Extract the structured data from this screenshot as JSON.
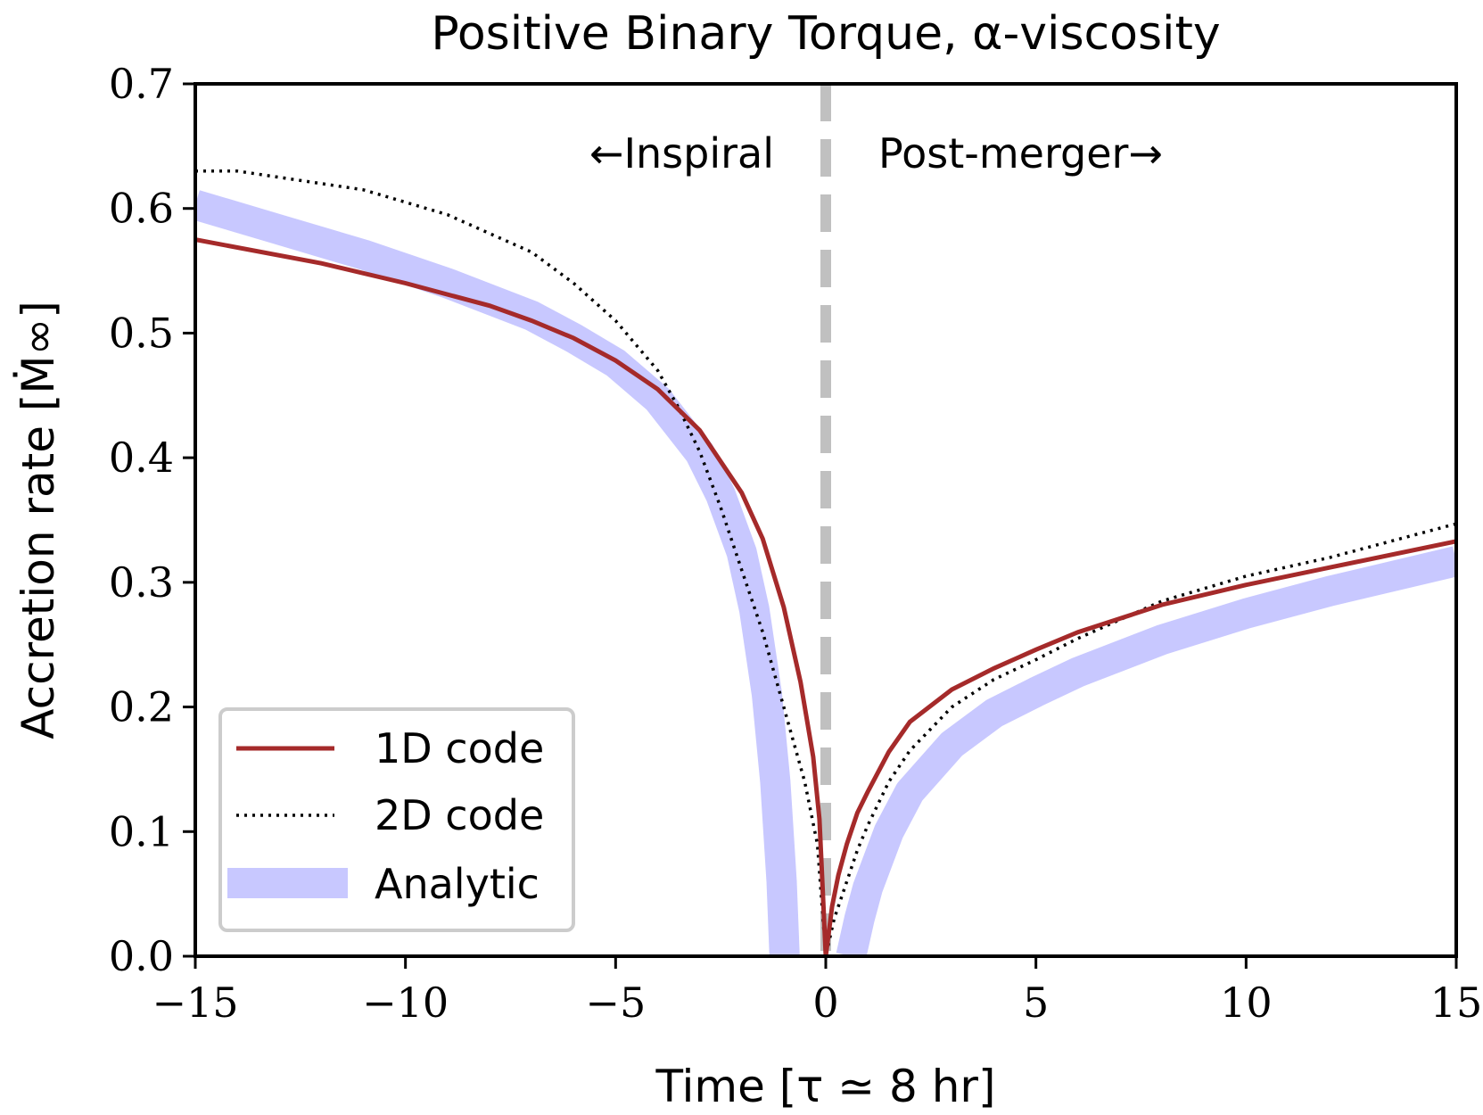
{
  "chart_data": {
    "type": "line",
    "title": "Positive Binary Torque, α-viscosity",
    "xlabel": "Time [τ ≃ 8 hr]",
    "ylabel": "Accretion rate [Ṁ∞]",
    "xlim": [
      -15,
      15
    ],
    "ylim": [
      0.0,
      0.7
    ],
    "xticks": [
      -15,
      -10,
      -5,
      0,
      5,
      10,
      15
    ],
    "xtick_labels": [
      "−15",
      "−10",
      "−5",
      "0",
      "5",
      "10",
      "15"
    ],
    "yticks": [
      0.0,
      0.1,
      0.2,
      0.3,
      0.4,
      0.5,
      0.6,
      0.7
    ],
    "ytick_labels": [
      "0.0",
      "0.1",
      "0.2",
      "0.3",
      "0.4",
      "0.5",
      "0.6",
      "0.7"
    ],
    "grid": false,
    "legend_position": "lower-left",
    "merger_line_x": 0,
    "annotations": {
      "inspiral": "←Inspiral",
      "post_merger": "Post-merger→"
    },
    "colors": {
      "one_d": "#a52a2a",
      "two_d": "#000000",
      "analytic": "#c8c8ff",
      "merger_line": "#c0c0c0"
    },
    "series": [
      {
        "name": "1D code",
        "style": "solid",
        "x": [
          -15,
          -12,
          -10,
          -8,
          -7,
          -6,
          -5,
          -4,
          -3,
          -2,
          -1.5,
          -1,
          -0.6,
          -0.3,
          -0.15,
          0,
          0.15,
          0.3,
          0.5,
          0.75,
          1,
          1.5,
          2,
          3,
          4,
          5,
          6,
          8,
          10,
          12,
          15
        ],
        "y": [
          0.575,
          0.556,
          0.54,
          0.522,
          0.51,
          0.496,
          0.478,
          0.455,
          0.422,
          0.372,
          0.335,
          0.28,
          0.22,
          0.16,
          0.11,
          0.0,
          0.04,
          0.065,
          0.09,
          0.115,
          0.132,
          0.164,
          0.188,
          0.214,
          0.231,
          0.246,
          0.26,
          0.282,
          0.298,
          0.312,
          0.333
        ]
      },
      {
        "name": "2D code",
        "style": "dotted",
        "x": [
          -15,
          -14,
          -13,
          -12,
          -11,
          -10,
          -9,
          -8,
          -7,
          -6,
          -5,
          -4,
          -3.5,
          -3,
          -2.5,
          -2,
          -1.5,
          -1,
          -0.5,
          -0.2,
          0,
          0.2,
          0.5,
          0.75,
          1,
          1.5,
          2,
          3,
          4,
          5,
          6,
          8,
          10,
          12,
          15
        ],
        "y": [
          0.63,
          0.63,
          0.625,
          0.62,
          0.615,
          0.605,
          0.595,
          0.58,
          0.565,
          0.54,
          0.51,
          0.47,
          0.44,
          0.405,
          0.36,
          0.31,
          0.26,
          0.2,
          0.14,
          0.09,
          0.0,
          0.03,
          0.06,
          0.085,
          0.105,
          0.14,
          0.165,
          0.2,
          0.222,
          0.238,
          0.255,
          0.285,
          0.305,
          0.32,
          0.347
        ]
      },
      {
        "name": "Analytic",
        "style": "thick-band",
        "segments": [
          {
            "x": [
              -15,
              -13,
              -11,
              -9,
              -7,
              -6,
              -5,
              -4,
              -3,
              -2.5,
              -2,
              -1.7,
              -1.4,
              -1.2,
              -1.05,
              -0.98
            ],
            "y": [
              0.603,
              0.583,
              0.563,
              0.54,
              0.514,
              0.496,
              0.476,
              0.447,
              0.404,
              0.37,
              0.324,
              0.278,
              0.21,
              0.14,
              0.06,
              0.0
            ]
          },
          {
            "x": [
              0.6,
              0.8,
              1,
              1.5,
              2,
              3,
              4,
              5,
              6,
              8,
              10,
              12,
              15
            ],
            "y": [
              0.0,
              0.03,
              0.055,
              0.1,
              0.132,
              0.17,
              0.195,
              0.212,
              0.228,
              0.254,
              0.275,
              0.293,
              0.317
            ]
          }
        ]
      }
    ]
  }
}
